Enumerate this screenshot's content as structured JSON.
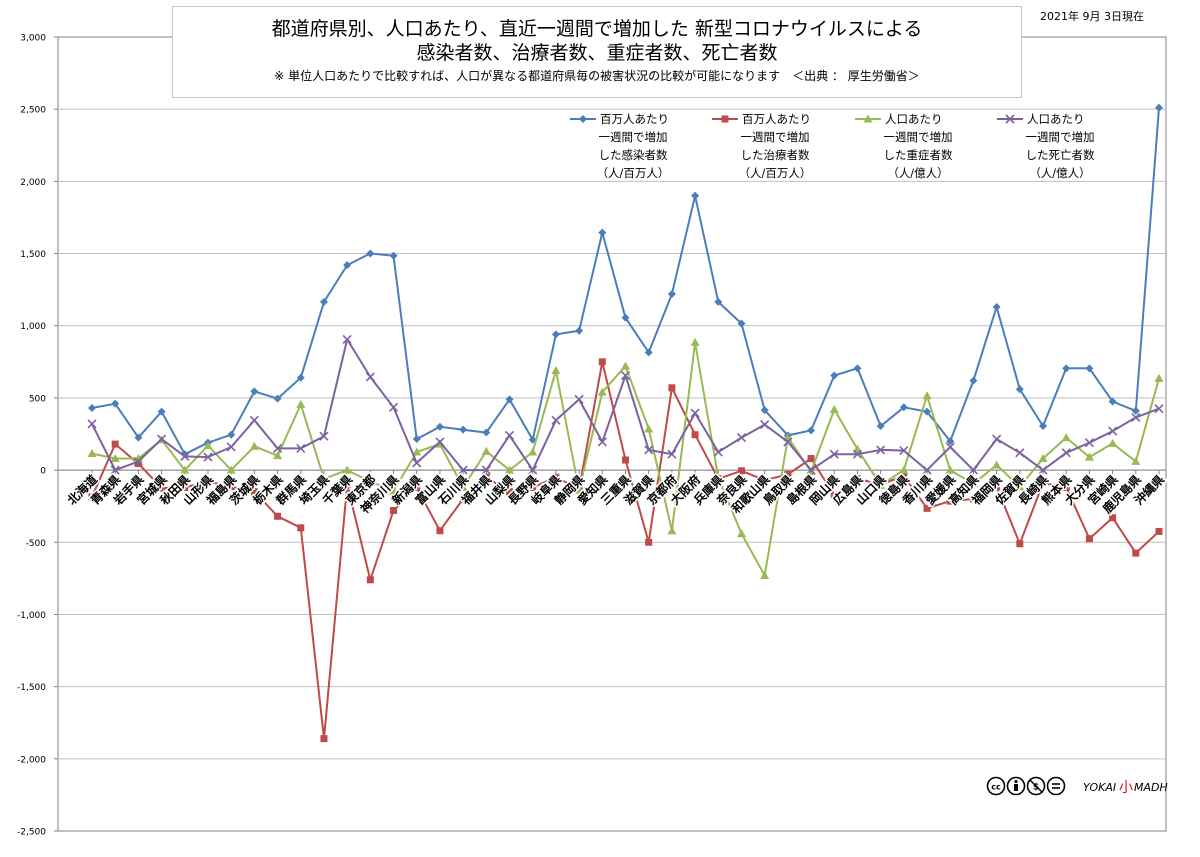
{
  "header": {
    "title_line1": "都道府県別、人口あたり、直近一週間で増加した 新型コロナウイルスによる",
    "title_line2": "感染者数、治療者数、重症者数、死亡者数",
    "title_line3": "※ 単位人口あたりで比較すれば、人口が異なる都道府県毎の被害状況の比較が可能になります　＜出典 ： 厚生労働省＞",
    "date": "2021年 9月 3日現在"
  },
  "footer": {
    "license_icons": "creative-commons-by-nc-nd",
    "brand_left": "YOKAI",
    "brand_mark": "小",
    "brand_right": "MADH"
  },
  "colors": {
    "infected": "#4a7ebb",
    "treatment": "#be4b48",
    "severe": "#98b954",
    "death": "#7d60a0",
    "grid": "#c0c0c0",
    "axis": "#808080"
  },
  "chart_data": {
    "type": "line",
    "ylim": [
      -2500,
      3000
    ],
    "yticks": [
      3000,
      2500,
      2000,
      1500,
      1000,
      500,
      0,
      -500,
      -1000,
      -1500,
      -2000,
      -2500
    ],
    "ytick_labels": [
      "3,000",
      "2,500",
      "2,000",
      "1,500",
      "1,000",
      "500",
      "0",
      "-500",
      "-1,000",
      "-1,500",
      "-2,000",
      "-2,500"
    ],
    "grid": true,
    "legend_position": "top-right",
    "categories": [
      "北海道",
      "青森県",
      "岩手県",
      "宮城県",
      "秋田県",
      "山形県",
      "福島県",
      "茨城県",
      "栃木県",
      "群馬県",
      "埼玉県",
      "千葉県",
      "東京都",
      "神奈川県",
      "新潟県",
      "富山県",
      "石川県",
      "福井県",
      "山梨県",
      "長野県",
      "岐阜県",
      "静岡県",
      "愛知県",
      "三重県",
      "滋賀県",
      "京都府",
      "大阪府",
      "兵庫県",
      "奈良県",
      "和歌山県",
      "鳥取県",
      "島根県",
      "岡山県",
      "広島県",
      "山口県",
      "徳島県",
      "香川県",
      "愛媛県",
      "高知県",
      "福岡県",
      "佐賀県",
      "長崎県",
      "熊本県",
      "大分県",
      "宮崎県",
      "鹿児島県",
      "沖縄県"
    ],
    "series": [
      {
        "name": "百万人あたり 一週間で増加 した感染者数 （人/百万人）",
        "legend_lines": [
          "百万人あたり",
          "一週間で増加",
          "した感染者数",
          "（人/百万人）"
        ],
        "color_key": "infected",
        "marker": "diamond",
        "values": [
          430,
          460,
          225,
          405,
          110,
          190,
          245,
          545,
          495,
          640,
          1165,
          1420,
          1500,
          1485,
          215,
          300,
          280,
          260,
          490,
          210,
          940,
          965,
          1645,
          1055,
          815,
          1220,
          1900,
          1165,
          1015,
          415,
          240,
          275,
          655,
          705,
          305,
          435,
          405,
          200,
          620,
          1130,
          560,
          305,
          705,
          705,
          475,
          410,
          2510
        ]
      },
      {
        "name": "百万人あたり 一週間で増加 した治療者数 （人/百万人）",
        "legend_lines": [
          "百万人あたり",
          "一週間で増加",
          "した治療者数",
          "（人/百万人）"
        ],
        "color_key": "treatment",
        "marker": "square",
        "values": [
          -185,
          180,
          45,
          -125,
          -120,
          -80,
          -115,
          -150,
          -320,
          -400,
          -1860,
          -100,
          -760,
          -280,
          -120,
          -420,
          -200,
          -50,
          -150,
          -120,
          -50,
          -130,
          750,
          70,
          -500,
          570,
          245,
          -60,
          -5,
          -70,
          -30,
          80,
          -175,
          -60,
          -100,
          -40,
          -265,
          -215,
          -200,
          -115,
          -510,
          -90,
          -120,
          -475,
          -330,
          -575,
          -425
        ]
      },
      {
        "name": "人口あたり 一週間で増加 した重症者数 （人/億人）",
        "legend_lines": [
          "人口あたり",
          "一週間で増加",
          "した重症者数",
          "（人/億人）"
        ],
        "color_key": "severe",
        "marker": "triangle",
        "values": [
          115,
          80,
          80,
          210,
          0,
          170,
          0,
          165,
          100,
          455,
          -60,
          0,
          -80,
          -145,
          125,
          180,
          -120,
          130,
          0,
          125,
          690,
          -140,
          540,
          720,
          285,
          -420,
          885,
          -55,
          -440,
          -730,
          225,
          -10,
          420,
          145,
          -105,
          0,
          515,
          0,
          -95,
          35,
          -115,
          80,
          225,
          90,
          185,
          60,
          635
        ]
      },
      {
        "name": "人口あたり 一週間で増加 した死亡者数 （人/億人）",
        "legend_lines": [
          "人口あたり",
          "一週間で増加",
          "した死亡者数",
          "（人/億人）"
        ],
        "color_key": "death",
        "marker": "x",
        "values": [
          320,
          0,
          60,
          215,
          95,
          90,
          160,
          345,
          150,
          150,
          235,
          905,
          645,
          435,
          50,
          195,
          0,
          0,
          240,
          0,
          345,
          490,
          195,
          655,
          140,
          110,
          395,
          125,
          225,
          315,
          195,
          0,
          110,
          110,
          140,
          135,
          0,
          160,
          0,
          215,
          120,
          0,
          120,
          190,
          270,
          365,
          425
        ]
      }
    ]
  }
}
